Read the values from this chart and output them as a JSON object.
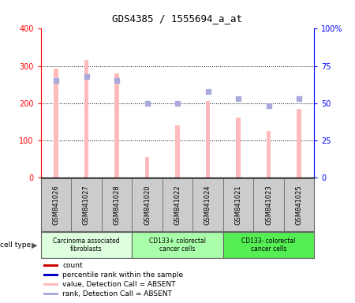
{
  "title": "GDS4385 / 1555694_a_at",
  "samples": [
    "GSM841026",
    "GSM841027",
    "GSM841028",
    "GSM841020",
    "GSM841022",
    "GSM841024",
    "GSM841021",
    "GSM841023",
    "GSM841025"
  ],
  "bar_values": [
    293,
    315,
    280,
    55,
    140,
    205,
    160,
    125,
    185
  ],
  "rank_values": [
    65,
    68,
    65,
    50,
    50,
    58,
    53,
    48,
    53
  ],
  "bar_color_absent": "#ffbbbb",
  "rank_color_absent": "#aaaadd",
  "ylim_left": [
    0,
    400
  ],
  "ylim_right": [
    0,
    100
  ],
  "yticks_left": [
    0,
    100,
    200,
    300,
    400
  ],
  "yticks_right": [
    0,
    25,
    50,
    75,
    100
  ],
  "ytick_labels_right": [
    "0",
    "25",
    "50",
    "75",
    "100%"
  ],
  "groups": [
    {
      "label": "Carcinoma associated\nfibroblasts",
      "start": 0,
      "end": 3,
      "color": "#ddffdd"
    },
    {
      "label": "CD133+ colorectal\ncancer cells",
      "start": 3,
      "end": 6,
      "color": "#aaffaa"
    },
    {
      "label": "CD133- colorectal\ncancer cells",
      "start": 6,
      "end": 9,
      "color": "#55ee55"
    }
  ],
  "cell_type_label": "cell type",
  "legend_items": [
    {
      "color": "#cc0000",
      "marker": "s",
      "label": "count"
    },
    {
      "color": "#0000cc",
      "marker": "s",
      "label": "percentile rank within the sample"
    },
    {
      "color": "#ffbbbb",
      "marker": "s",
      "label": "value, Detection Call = ABSENT"
    },
    {
      "color": "#aaaadd",
      "marker": "s",
      "label": "rank, Detection Call = ABSENT"
    }
  ],
  "bar_width": 0.15,
  "grid_color": "black",
  "bg_color": "#ffffff",
  "plot_bg": "#ffffff",
  "label_box_color": "#cccccc",
  "label_box_edge": "#666666"
}
